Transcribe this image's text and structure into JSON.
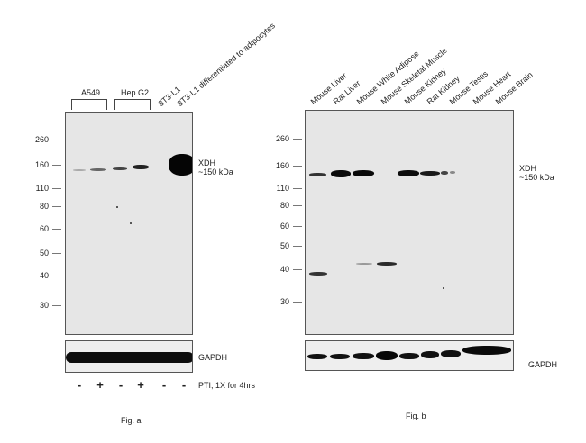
{
  "fig_a": {
    "caption": "Fig. a",
    "groups": [
      "A549",
      "Hep G2"
    ],
    "lane_labels": [
      "3T3-L1",
      "3T3-L1 differentiated to adipocytes"
    ],
    "mw_markers": [
      "260",
      "160",
      "110",
      "80",
      "60",
      "50",
      "40",
      "30"
    ],
    "target_label": "XDH",
    "target_size": "~150 kDa",
    "loading_label": "GAPDH",
    "treatment_signs": [
      "-",
      "+",
      "-",
      "+",
      "-",
      "-"
    ],
    "treatment_label": "PTI, 1X for 4hrs"
  },
  "fig_b": {
    "caption": "Fig. b",
    "lane_labels": [
      "Mouse Liver",
      "Rat Liver",
      "Mouse White Adipose",
      "Mouse Skeletal Muscle",
      "Mouse Kidney",
      "Rat Kidney",
      "Mouse Testis",
      "Mouse Heart",
      "Mouse Brain"
    ],
    "mw_markers": [
      "260",
      "160",
      "110",
      "80",
      "60",
      "50",
      "40",
      "30"
    ],
    "target_label": "XDH",
    "target_size": "~150 kDa",
    "loading_label": "GAPDH"
  }
}
